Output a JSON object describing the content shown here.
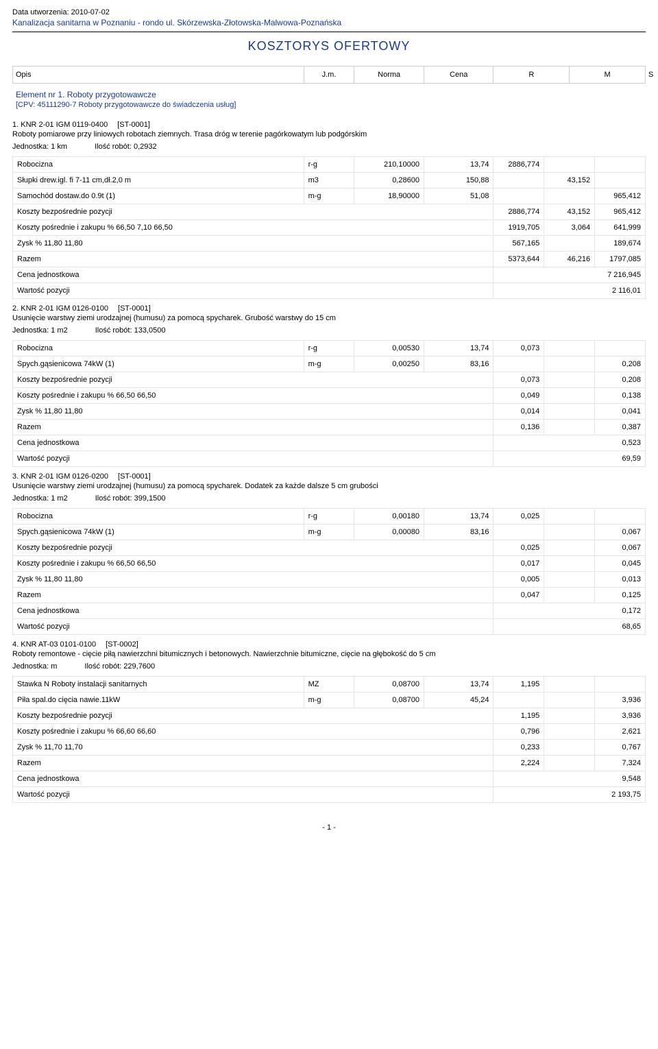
{
  "header": {
    "created": "Data utworzenia: 2010-07-02",
    "project": "Kanalizacja sanitarna w Poznaniu - rondo ul. Skórzewska-Złotowska-Malwowa-Poznańska",
    "title": "KOSZTORYS  OFERTOWY"
  },
  "columns": {
    "opis": "Opis",
    "jm": "J.m.",
    "norma": "Norma",
    "cena": "Cena",
    "r": "R",
    "m": "M",
    "s": "S"
  },
  "element": {
    "title": "Element nr 1. Roboty przygotowawcze",
    "cpv": "[CPV: 45111290-7 Roboty przygotowawcze do świadczenia usług]"
  },
  "items": [
    {
      "code": "1. KNR 2-01 IGM  0119-0400",
      "st": "[ST-0001]",
      "desc": "Roboty pomiarowe przy liniowych robotach ziemnych. Trasa dróg w terenie pagórkowatym lub podgórskim",
      "unit": "Jednostka: 1 km",
      "qty": "Ilość robót: 0,2932",
      "rows": [
        {
          "label": "Robocizna",
          "jm": "r-g",
          "norm": "210,10000",
          "cena": "13,74",
          "r": "2886,774",
          "m": "",
          "s": ""
        },
        {
          "label": "Słupki drew.igl. fi 7-11 cm,dł.2,0 m",
          "jm": "m3",
          "norm": "0,28600",
          "cena": "150,88",
          "r": "",
          "m": "43,152",
          "s": ""
        },
        {
          "label": "Samochód dostaw.do 0.9t (1)",
          "jm": "m-g",
          "norm": "18,90000",
          "cena": "51,08",
          "r": "",
          "m": "",
          "s": "965,412"
        },
        {
          "label": "Koszty bezpośrednie pozycji",
          "span": 4,
          "r": "2886,774",
          "m": "43,152",
          "s": "965,412"
        },
        {
          "label": "Koszty pośrednie i zakupu %       66,50    7,10   66,50",
          "span": 4,
          "r": "1919,705",
          "m": "3,064",
          "s": "641,999"
        },
        {
          "label": "Zysk %      11,80    11,80",
          "span": 4,
          "r": "567,165",
          "m": "",
          "s": "189,674"
        },
        {
          "label": "Razem",
          "span": 4,
          "r": "5373,644",
          "m": "46,216",
          "s": "1797,085"
        },
        {
          "label": "Cena jednostkowa",
          "span": 4,
          "full": "7 216,945"
        },
        {
          "label": "Wartość pozycji",
          "span": 4,
          "full": "2 116,01"
        }
      ]
    },
    {
      "code": "2. KNR 2-01 IGM  0126-0100",
      "st": "[ST-0001]",
      "desc": "Usunięcie warstwy ziemi urodzajnej (humusu) za pomocą spycharek. Grubość warstwy do 15 cm",
      "unit": "Jednostka: 1 m2",
      "qty": "Ilość robót: 133,0500",
      "rows": [
        {
          "label": "Robocizna",
          "jm": "r-g",
          "norm": "0,00530",
          "cena": "13,74",
          "r": "0,073",
          "m": "",
          "s": ""
        },
        {
          "label": "Spych.gąsienicowa 74kW  (1)",
          "jm": "m-g",
          "norm": "0,00250",
          "cena": "83,16",
          "r": "",
          "m": "",
          "s": "0,208"
        },
        {
          "label": "Koszty bezpośrednie pozycji",
          "span": 4,
          "r": "0,073",
          "m": "",
          "s": "0,208"
        },
        {
          "label": "Koszty pośrednie i zakupu %       66,50    66,50",
          "span": 4,
          "r": "0,049",
          "m": "",
          "s": "0,138"
        },
        {
          "label": "Zysk %      11,80    11,80",
          "span": 4,
          "r": "0,014",
          "m": "",
          "s": "0,041"
        },
        {
          "label": "Razem",
          "span": 4,
          "r": "0,136",
          "m": "",
          "s": "0,387"
        },
        {
          "label": "Cena jednostkowa",
          "span": 4,
          "full": "0,523"
        },
        {
          "label": "Wartość pozycji",
          "span": 4,
          "full": "69,59"
        }
      ]
    },
    {
      "code": "3. KNR 2-01 IGM  0126-0200",
      "st": "[ST-0001]",
      "desc": "Usunięcie warstwy ziemi urodzajnej (humusu) za pomocą spycharek. Dodatek za każde dalsze 5 cm grubości",
      "unit": "Jednostka: 1 m2",
      "qty": "Ilość robót: 399,1500",
      "rows": [
        {
          "label": "Robocizna",
          "jm": "r-g",
          "norm": "0,00180",
          "cena": "13,74",
          "r": "0,025",
          "m": "",
          "s": ""
        },
        {
          "label": "Spych.gąsienicowa 74kW  (1)",
          "jm": "m-g",
          "norm": "0,00080",
          "cena": "83,16",
          "r": "",
          "m": "",
          "s": "0,067"
        },
        {
          "label": "Koszty bezpośrednie pozycji",
          "span": 4,
          "r": "0,025",
          "m": "",
          "s": "0,067"
        },
        {
          "label": "Koszty pośrednie i zakupu %       66,50    66,50",
          "span": 4,
          "r": "0,017",
          "m": "",
          "s": "0,045"
        },
        {
          "label": "Zysk %      11,80    11,80",
          "span": 4,
          "r": "0,005",
          "m": "",
          "s": "0,013"
        },
        {
          "label": "Razem",
          "span": 4,
          "r": "0,047",
          "m": "",
          "s": "0,125"
        },
        {
          "label": "Cena jednostkowa",
          "span": 4,
          "full": "0,172"
        },
        {
          "label": "Wartość pozycji",
          "span": 4,
          "full": "68,65"
        }
      ]
    },
    {
      "code": "4. KNR AT-03  0101-0100",
      "st": "[ST-0002]",
      "desc": "Roboty remontowe - cięcie piłą nawierzchni bitumicznych i betonowych. Nawierzchnie bitumiczne, cięcie na głębokość do 5 cm",
      "unit": "Jednostka: m",
      "qty": "Ilość robót: 229,7600",
      "rows": [
        {
          "label": "Stawka N Roboty instalacji sanitarnych",
          "jm": "MZ",
          "norm": "0,08700",
          "cena": "13,74",
          "r": "1,195",
          "m": "",
          "s": ""
        },
        {
          "label": "Piła spal.do cięcia nawie.11kW",
          "jm": "m-g",
          "norm": "0,08700",
          "cena": "45,24",
          "r": "",
          "m": "",
          "s": "3,936"
        },
        {
          "label": "Koszty bezpośrednie pozycji",
          "span": 4,
          "r": "1,195",
          "m": "",
          "s": "3,936"
        },
        {
          "label": "Koszty pośrednie i zakupu %       66,60    66,60",
          "span": 4,
          "r": "0,796",
          "m": "",
          "s": "2,621"
        },
        {
          "label": "Zysk %      11,70    11,70",
          "span": 4,
          "r": "0,233",
          "m": "",
          "s": "0,767"
        },
        {
          "label": "Razem",
          "span": 4,
          "r": "2,224",
          "m": "",
          "s": "7,324"
        },
        {
          "label": "Cena jednostkowa",
          "span": 4,
          "full": "9,548"
        },
        {
          "label": "Wartość pozycji",
          "span": 4,
          "full": "2 193,75"
        }
      ]
    }
  ],
  "footer": "- 1 -"
}
